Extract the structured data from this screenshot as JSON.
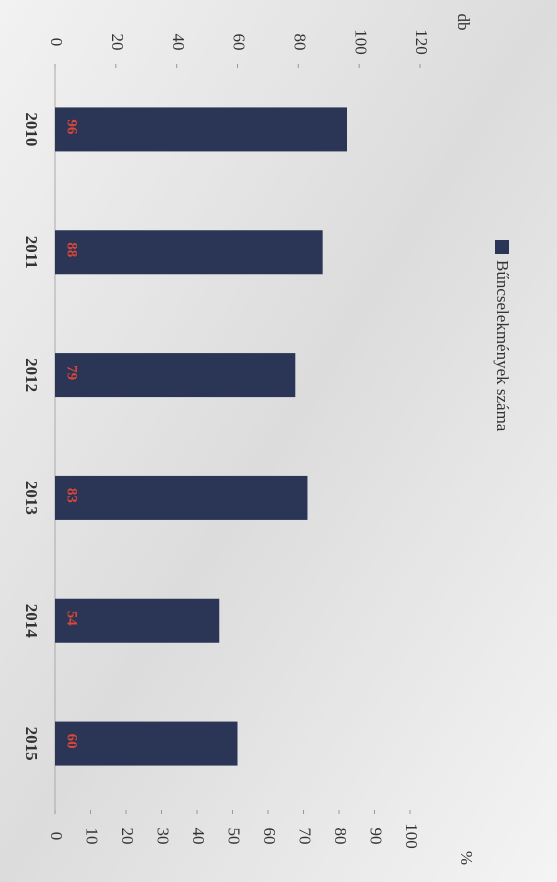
{
  "chart_data": {
    "type": "bar",
    "categories": [
      "2010",
      "2011",
      "2012",
      "2013",
      "2014",
      "2015"
    ],
    "series": [
      {
        "name": "Bűncselekmények száma",
        "color": "#2b3556",
        "values": [
          96,
          88,
          79,
          83,
          54,
          60
        ]
      }
    ],
    "value_label_color": "#d9463a",
    "ylabel": "db",
    "ylim": [
      0,
      120
    ],
    "yticks": [
      0,
      20,
      40,
      60,
      80,
      100,
      120
    ],
    "y2label": "%",
    "y2lim": [
      0,
      100
    ],
    "y2ticks": [
      0,
      10,
      20,
      30,
      40,
      50,
      60,
      70,
      80,
      90,
      100
    ]
  }
}
